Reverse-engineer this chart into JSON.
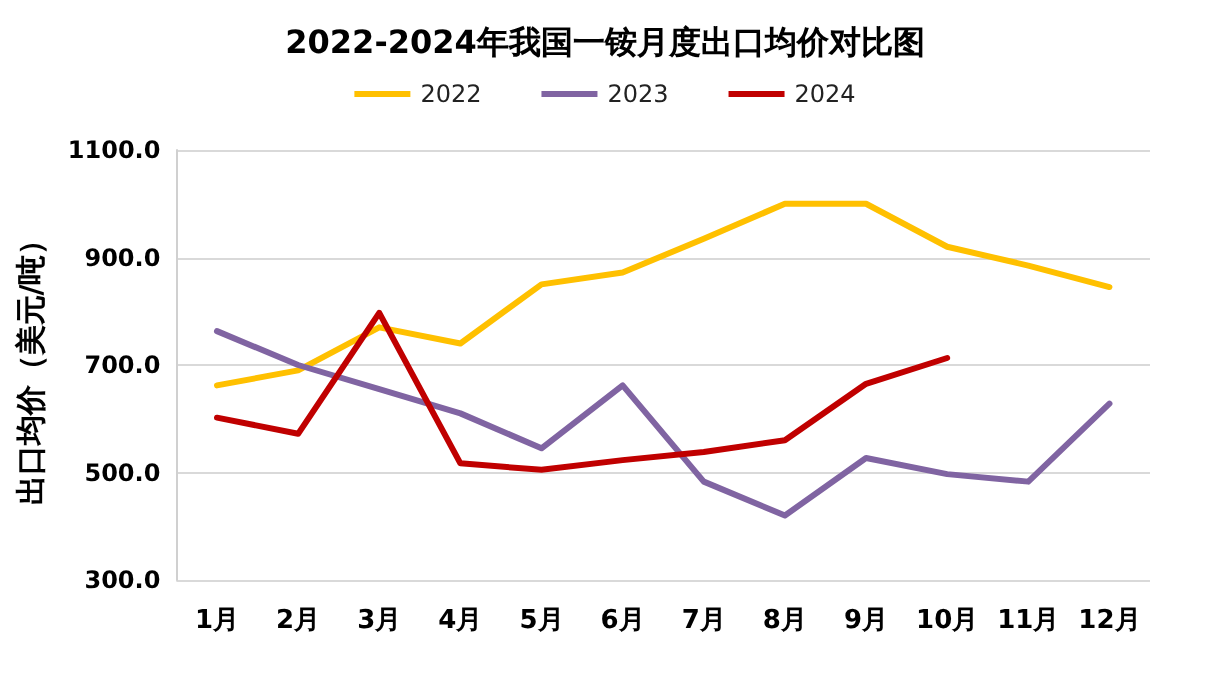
{
  "chart_data": {
    "type": "line",
    "title": "2022-2024年我国一铵月度出口均价对比图",
    "ylabel": "出口均价（美元/吨）",
    "categories": [
      "1月",
      "2月",
      "3月",
      "4月",
      "5月",
      "6月",
      "7月",
      "8月",
      "9月",
      "10月",
      "11月",
      "12月"
    ],
    "series": [
      {
        "name": "2022",
        "color": "#ffc000",
        "values": [
          662,
          690,
          770,
          740,
          850,
          872,
          935,
          1000,
          1000,
          920,
          885,
          845
        ]
      },
      {
        "name": "2023",
        "color": "#8064a2",
        "values": [
          763,
          700,
          655,
          610,
          545,
          662,
          483,
          420,
          527,
          497,
          483,
          628
        ]
      },
      {
        "name": "2024",
        "color": "#c00000",
        "values": [
          602,
          572,
          797,
          517,
          505,
          523,
          538,
          560,
          665,
          713,
          null,
          null
        ]
      }
    ],
    "ylim": [
      300,
      1100
    ],
    "yticks": [
      {
        "value": 300,
        "label": "300.0"
      },
      {
        "value": 500,
        "label": "500.0"
      },
      {
        "value": 700,
        "label": "700.0"
      },
      {
        "value": 900,
        "label": "900.0"
      },
      {
        "value": 1100,
        "label": "1100.0"
      }
    ],
    "grid": "y",
    "legend": "top",
    "marker": "none",
    "line_style": "solid"
  }
}
